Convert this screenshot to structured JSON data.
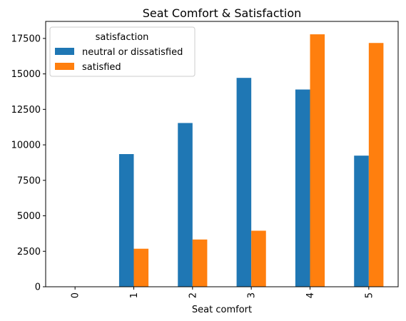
{
  "chart_data": {
    "type": "bar",
    "title": "Seat Comfort & Satisfaction",
    "xlabel": "Seat comfort",
    "ylabel": "",
    "categories": [
      "0",
      "1",
      "2",
      "3",
      "4",
      "5"
    ],
    "series": [
      {
        "name": "neutral or dissatisfied",
        "color": "#1f77b4",
        "values": [
          1,
          9350,
          11540,
          14720,
          13900,
          9240
        ]
      },
      {
        "name": "satisfied",
        "color": "#ff7f0e",
        "values": [
          0,
          2680,
          3330,
          3950,
          17790,
          17180
        ]
      }
    ],
    "ylim": [
      0,
      18700
    ],
    "yticks": [
      0,
      2500,
      5000,
      7500,
      10000,
      12500,
      15000,
      17500
    ],
    "grid": false,
    "legend": {
      "title": "satisfaction",
      "position": "top-left"
    }
  }
}
